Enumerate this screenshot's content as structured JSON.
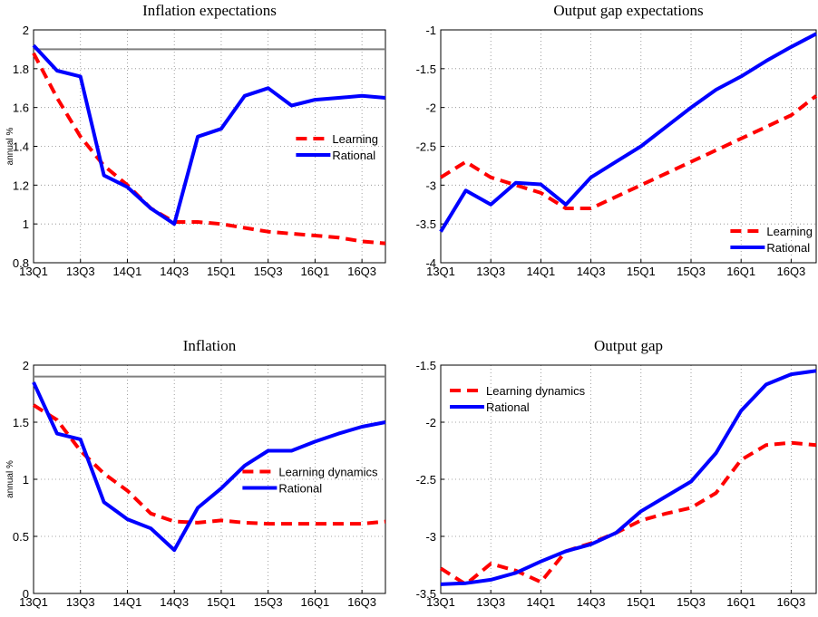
{
  "chart_data": [
    {
      "type": "line",
      "title": "Inflation expectations",
      "ylabel": "annual %",
      "categories": [
        "13Q1",
        null,
        "13Q3",
        null,
        "14Q1",
        null,
        "14Q3",
        null,
        "15Q1",
        null,
        "15Q3",
        null,
        "16Q1",
        null,
        "16Q3",
        null
      ],
      "series": [
        {
          "name": "Learning",
          "color": "#ff0000",
          "dash": true,
          "values": [
            1.88,
            1.65,
            1.45,
            1.3,
            1.2,
            1.08,
            1.01,
            1.01,
            1.0,
            0.98,
            0.96,
            0.95,
            0.94,
            0.93,
            0.91,
            0.9
          ]
        },
        {
          "name": "Rational",
          "color": "#0000ff",
          "dash": false,
          "values": [
            1.92,
            1.79,
            1.76,
            1.25,
            1.19,
            1.08,
            1.0,
            1.45,
            1.49,
            1.66,
            1.7,
            1.61,
            1.64,
            1.65,
            1.66,
            1.65
          ]
        }
      ],
      "reference_line": 1.9,
      "reference_color": "#808080",
      "ylim": [
        0.8,
        2
      ],
      "yticks": [
        0.8,
        1,
        1.2,
        1.4,
        1.6,
        1.8,
        2
      ],
      "grid": true,
      "legend": "center-right"
    },
    {
      "type": "line",
      "title": "Output gap expectations",
      "categories": [
        "13Q1",
        null,
        "13Q3",
        null,
        "14Q1",
        null,
        "14Q3",
        null,
        "15Q1",
        null,
        "15Q3",
        null,
        "16Q1",
        null,
        "16Q3",
        null
      ],
      "series": [
        {
          "name": "Learning",
          "color": "#ff0000",
          "dash": true,
          "values": [
            -2.9,
            -2.7,
            -2.9,
            -3.0,
            -3.1,
            -3.3,
            -3.3,
            -3.15,
            -3.0,
            -2.85,
            -2.7,
            -2.55,
            -2.4,
            -2.25,
            -2.1,
            -1.85
          ]
        },
        {
          "name": "Rational",
          "color": "#0000ff",
          "dash": false,
          "values": [
            -3.6,
            -3.07,
            -3.25,
            -2.97,
            -2.99,
            -3.25,
            -2.9,
            -2.7,
            -2.5,
            -2.25,
            -2.0,
            -1.77,
            -1.6,
            -1.4,
            -1.22,
            -1.05
          ]
        }
      ],
      "ylim": [
        -4,
        -1
      ],
      "yticks": [
        -4,
        -3.5,
        -3,
        -2.5,
        -2,
        -1.5,
        -1
      ],
      "grid": true,
      "legend": "lower-right"
    },
    {
      "type": "line",
      "title": "Inflation",
      "ylabel": "annual %",
      "categories": [
        "13Q1",
        null,
        "13Q3",
        null,
        "14Q1",
        null,
        "14Q3",
        null,
        "15Q1",
        null,
        "15Q3",
        null,
        "16Q1",
        null,
        "16Q3",
        null
      ],
      "series": [
        {
          "name": "Learning dynamics",
          "color": "#ff0000",
          "dash": true,
          "values": [
            1.65,
            1.52,
            1.25,
            1.05,
            0.9,
            0.7,
            0.63,
            0.62,
            0.64,
            0.62,
            0.61,
            0.61,
            0.61,
            0.61,
            0.61,
            0.63
          ]
        },
        {
          "name": "Rational",
          "color": "#0000ff",
          "dash": false,
          "values": [
            1.85,
            1.4,
            1.35,
            0.8,
            0.65,
            0.57,
            0.38,
            0.75,
            0.92,
            1.12,
            1.25,
            1.25,
            1.33,
            1.4,
            1.46,
            1.5
          ]
        }
      ],
      "reference_line": 1.9,
      "reference_color": "#808080",
      "ylim": [
        0,
        2
      ],
      "yticks": [
        0,
        0.5,
        1,
        1.5,
        2
      ],
      "grid": true,
      "legend": "center-right"
    },
    {
      "type": "line",
      "title": "Output gap",
      "categories": [
        "13Q1",
        null,
        "13Q3",
        null,
        "14Q1",
        null,
        "14Q3",
        null,
        "15Q1",
        null,
        "15Q3",
        null,
        "16Q1",
        null,
        "16Q3",
        null
      ],
      "series": [
        {
          "name": "Learning dynamics",
          "color": "#ff0000",
          "dash": true,
          "values": [
            -3.28,
            -3.42,
            -3.24,
            -3.3,
            -3.4,
            -3.13,
            -3.06,
            -2.97,
            -2.86,
            -2.8,
            -2.75,
            -2.62,
            -2.33,
            -2.2,
            -2.18,
            -2.2
          ]
        },
        {
          "name": "Rational",
          "color": "#0000ff",
          "dash": false,
          "values": [
            -3.42,
            -3.41,
            -3.38,
            -3.32,
            -3.22,
            -3.13,
            -3.07,
            -2.97,
            -2.78,
            -2.65,
            -2.52,
            -2.27,
            -1.9,
            -1.67,
            -1.58,
            -1.55
          ]
        }
      ],
      "ylim": [
        -3.5,
        -1.5
      ],
      "yticks": [
        -3.5,
        -3,
        -2.5,
        -2,
        -1.5
      ],
      "grid": true,
      "legend": "upper-left"
    }
  ]
}
